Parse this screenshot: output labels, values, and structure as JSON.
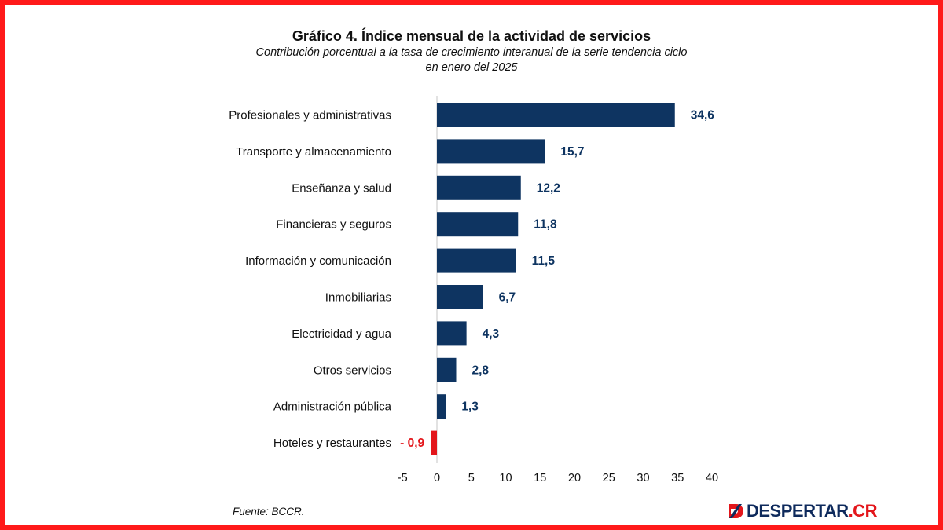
{
  "header": {
    "title": "Gráfico 4. Índice mensual de la actividad de servicios",
    "subtitle_line1": "Contribución porcentual a la tasa de crecimiento interanual de la serie tendencia ciclo",
    "subtitle_line2": "en enero del 2025"
  },
  "chart_data": {
    "type": "bar",
    "orientation": "horizontal",
    "categories": [
      "Profesionales y administrativas",
      "Transporte y almacenamiento",
      "Enseñanza y salud",
      "Financieras y seguros",
      "Información y comunicación",
      "Inmobiliarias",
      "Electricidad y agua",
      "Otros servicios",
      "Administración pública",
      "Hoteles y restaurantes"
    ],
    "values": [
      34.6,
      15.7,
      12.2,
      11.8,
      11.5,
      6.7,
      4.3,
      2.8,
      1.3,
      -0.9
    ],
    "value_labels": [
      "34,6",
      "15,7",
      "12,2",
      "11,8",
      "11,5",
      "6,7",
      "4,3",
      "2,8",
      "1,3",
      "- 0,9"
    ],
    "xlim": [
      -5,
      40
    ],
    "xticks": [
      "-5",
      "0",
      "5",
      "10",
      "15",
      "20",
      "25",
      "30",
      "35",
      "40"
    ],
    "grid": false,
    "colors": {
      "positive": "#0e3461",
      "negative": "#e3161b"
    }
  },
  "footer": {
    "source": "Fuente: BCCR.",
    "logo_main": "DESPERTAR",
    "logo_suffix": ".CR"
  }
}
